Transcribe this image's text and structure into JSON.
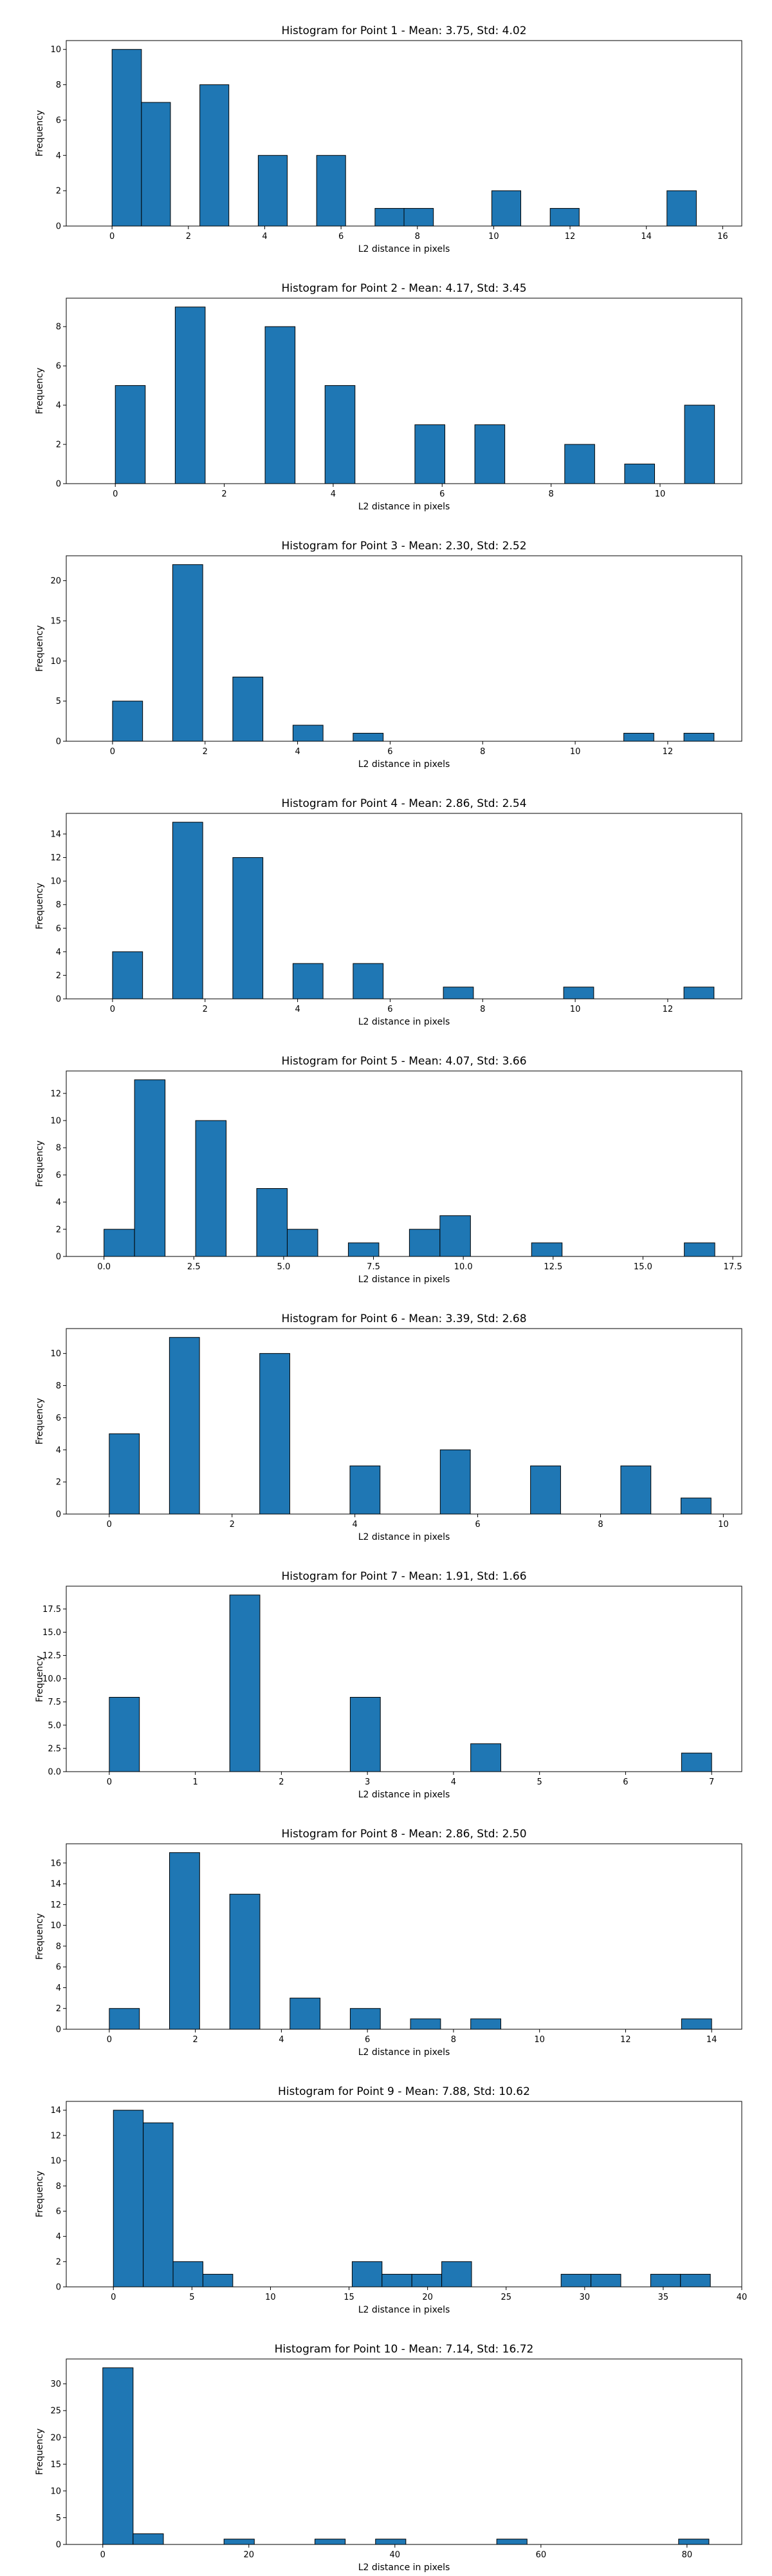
{
  "bar_color": "#1f77b4",
  "chart_data": [
    {
      "type": "bar",
      "title": "Histogram for Point 1 - Mean: 3.75, Std: 4.02",
      "xlabel": "L2 distance in pixels",
      "ylabel": "Frequency",
      "xlim": [
        -1.2,
        16.5
      ],
      "ylim": [
        0,
        10.5
      ],
      "xticks": [
        0,
        2,
        4,
        6,
        8,
        10,
        12,
        14,
        16
      ],
      "xtick_labels": [
        "0",
        "2",
        "4",
        "6",
        "8",
        "10",
        "12",
        "14",
        "16"
      ],
      "yticks": [
        0,
        2,
        4,
        6,
        8,
        10
      ],
      "ytick_labels": [
        "0",
        "2",
        "4",
        "6",
        "8",
        "10"
      ],
      "bins": [
        {
          "x0": 0.0,
          "x1": 0.77,
          "count": 10
        },
        {
          "x0": 0.77,
          "x1": 1.53,
          "count": 7
        },
        {
          "x0": 2.3,
          "x1": 3.06,
          "count": 8
        },
        {
          "x0": 3.83,
          "x1": 4.59,
          "count": 4
        },
        {
          "x0": 5.36,
          "x1": 6.12,
          "count": 4
        },
        {
          "x0": 6.89,
          "x1": 7.65,
          "count": 1
        },
        {
          "x0": 7.65,
          "x1": 8.42,
          "count": 1
        },
        {
          "x0": 9.95,
          "x1": 10.71,
          "count": 2
        },
        {
          "x0": 11.48,
          "x1": 12.24,
          "count": 1
        },
        {
          "x0": 14.54,
          "x1": 15.31,
          "count": 2
        }
      ]
    },
    {
      "type": "bar",
      "title": "Histogram for Point 2 - Mean: 4.17, Std: 3.45",
      "xlabel": "L2 distance in pixels",
      "ylabel": "Frequency",
      "xlim": [
        -0.9,
        11.5
      ],
      "ylim": [
        0,
        9.45
      ],
      "xticks": [
        0,
        2,
        4,
        6,
        8,
        10
      ],
      "xtick_labels": [
        "0",
        "2",
        "4",
        "6",
        "8",
        "10"
      ],
      "yticks": [
        0,
        2,
        4,
        6,
        8
      ],
      "ytick_labels": [
        "0",
        "2",
        "4",
        "6",
        "8"
      ],
      "bins": [
        {
          "x0": 0.0,
          "x1": 0.55,
          "count": 5
        },
        {
          "x0": 1.1,
          "x1": 1.65,
          "count": 9
        },
        {
          "x0": 2.75,
          "x1": 3.3,
          "count": 8
        },
        {
          "x0": 3.85,
          "x1": 4.4,
          "count": 5
        },
        {
          "x0": 5.5,
          "x1": 6.05,
          "count": 3
        },
        {
          "x0": 6.6,
          "x1": 7.15,
          "count": 3
        },
        {
          "x0": 8.25,
          "x1": 8.8,
          "count": 2
        },
        {
          "x0": 9.35,
          "x1": 9.9,
          "count": 1
        },
        {
          "x0": 10.45,
          "x1": 11.0,
          "count": 4
        }
      ]
    },
    {
      "type": "bar",
      "title": "Histogram for Point 3 - Mean: 2.30, Std: 2.52",
      "xlabel": "L2 distance in pixels",
      "ylabel": "Frequency",
      "xlim": [
        -1.0,
        13.6
      ],
      "ylim": [
        0,
        23.1
      ],
      "xticks": [
        0,
        2,
        4,
        6,
        8,
        10,
        12
      ],
      "xtick_labels": [
        "0",
        "2",
        "4",
        "6",
        "8",
        "10",
        "12"
      ],
      "yticks": [
        0,
        5,
        10,
        15,
        20
      ],
      "ytick_labels": [
        "0",
        "5",
        "10",
        "15",
        "20"
      ],
      "bins": [
        {
          "x0": 0.0,
          "x1": 0.65,
          "count": 5
        },
        {
          "x0": 1.3,
          "x1": 1.95,
          "count": 22
        },
        {
          "x0": 2.6,
          "x1": 3.25,
          "count": 8
        },
        {
          "x0": 3.9,
          "x1": 4.55,
          "count": 2
        },
        {
          "x0": 5.2,
          "x1": 5.85,
          "count": 1
        },
        {
          "x0": 11.05,
          "x1": 11.7,
          "count": 1
        },
        {
          "x0": 12.35,
          "x1": 13.0,
          "count": 1
        }
      ]
    },
    {
      "type": "bar",
      "title": "Histogram for Point 4 - Mean: 2.86, Std: 2.54",
      "xlabel": "L2 distance in pixels",
      "ylabel": "Frequency",
      "xlim": [
        -1.0,
        13.6
      ],
      "ylim": [
        0,
        15.75
      ],
      "xticks": [
        0,
        2,
        4,
        6,
        8,
        10,
        12
      ],
      "xtick_labels": [
        "0",
        "2",
        "4",
        "6",
        "8",
        "10",
        "12"
      ],
      "yticks": [
        0,
        2,
        4,
        6,
        8,
        10,
        12,
        14
      ],
      "ytick_labels": [
        "0",
        "2",
        "4",
        "6",
        "8",
        "10",
        "12",
        "14"
      ],
      "bins": [
        {
          "x0": 0.0,
          "x1": 0.65,
          "count": 4
        },
        {
          "x0": 1.3,
          "x1": 1.95,
          "count": 15
        },
        {
          "x0": 2.6,
          "x1": 3.25,
          "count": 12
        },
        {
          "x0": 3.9,
          "x1": 4.55,
          "count": 3
        },
        {
          "x0": 5.2,
          "x1": 5.85,
          "count": 3
        },
        {
          "x0": 7.15,
          "x1": 7.8,
          "count": 1
        },
        {
          "x0": 9.75,
          "x1": 10.4,
          "count": 1
        },
        {
          "x0": 12.35,
          "x1": 13.0,
          "count": 1
        }
      ]
    },
    {
      "type": "bar",
      "title": "Histogram for Point 5 - Mean: 4.07, Std: 3.66",
      "xlabel": "L2 distance in pixels",
      "ylabel": "Frequency",
      "xlim": [
        -1.05,
        17.75
      ],
      "ylim": [
        0,
        13.65
      ],
      "xticks": [
        0,
        2.5,
        5,
        7.5,
        10,
        12.5,
        15,
        17.5
      ],
      "xtick_labels": [
        "0.0",
        "2.5",
        "5.0",
        "7.5",
        "10.0",
        "12.5",
        "15.0",
        "17.5"
      ],
      "yticks": [
        0,
        2,
        4,
        6,
        8,
        10,
        12
      ],
      "ytick_labels": [
        "0",
        "2",
        "4",
        "6",
        "8",
        "10",
        "12"
      ],
      "bins": [
        {
          "x0": 0.0,
          "x1": 0.85,
          "count": 2
        },
        {
          "x0": 0.85,
          "x1": 1.7,
          "count": 13
        },
        {
          "x0": 2.55,
          "x1": 3.4,
          "count": 10
        },
        {
          "x0": 4.25,
          "x1": 5.1,
          "count": 5
        },
        {
          "x0": 5.1,
          "x1": 5.95,
          "count": 2
        },
        {
          "x0": 6.8,
          "x1": 7.65,
          "count": 1
        },
        {
          "x0": 8.5,
          "x1": 9.35,
          "count": 2
        },
        {
          "x0": 9.35,
          "x1": 10.2,
          "count": 3
        },
        {
          "x0": 11.9,
          "x1": 12.75,
          "count": 1
        },
        {
          "x0": 16.15,
          "x1": 17.0,
          "count": 1
        }
      ]
    },
    {
      "type": "bar",
      "title": "Histogram for Point 6 - Mean: 3.39, Std: 2.68",
      "xlabel": "L2 distance in pixels",
      "ylabel": "Frequency",
      "xlim": [
        -0.7,
        10.3
      ],
      "ylim": [
        0,
        11.55
      ],
      "xticks": [
        0,
        2,
        4,
        6,
        8,
        10
      ],
      "xtick_labels": [
        "0",
        "2",
        "4",
        "6",
        "8",
        "10"
      ],
      "yticks": [
        0,
        2,
        4,
        6,
        8,
        10
      ],
      "ytick_labels": [
        "0",
        "2",
        "4",
        "6",
        "8",
        "10"
      ],
      "bins": [
        {
          "x0": 0.0,
          "x1": 0.49,
          "count": 5
        },
        {
          "x0": 0.98,
          "x1": 1.47,
          "count": 11
        },
        {
          "x0": 2.45,
          "x1": 2.94,
          "count": 10
        },
        {
          "x0": 3.92,
          "x1": 4.41,
          "count": 3
        },
        {
          "x0": 5.39,
          "x1": 5.88,
          "count": 4
        },
        {
          "x0": 6.86,
          "x1": 7.35,
          "count": 3
        },
        {
          "x0": 8.33,
          "x1": 8.82,
          "count": 3
        },
        {
          "x0": 9.31,
          "x1": 9.8,
          "count": 1
        }
      ]
    },
    {
      "type": "bar",
      "title": "Histogram for Point 7 - Mean: 1.91, Std: 1.66",
      "xlabel": "L2 distance in pixels",
      "ylabel": "Frequency",
      "xlim": [
        -0.5,
        7.35
      ],
      "ylim": [
        0,
        19.95
      ],
      "xticks": [
        0,
        1,
        2,
        3,
        4,
        5,
        6,
        7
      ],
      "xtick_labels": [
        "0",
        "1",
        "2",
        "3",
        "4",
        "5",
        "6",
        "7"
      ],
      "yticks": [
        0,
        2.5,
        5,
        7.5,
        10,
        12.5,
        15,
        17.5
      ],
      "ytick_labels": [
        "0.0",
        "2.5",
        "5.0",
        "7.5",
        "10.0",
        "12.5",
        "15.0",
        "17.5"
      ],
      "bins": [
        {
          "x0": 0.0,
          "x1": 0.35,
          "count": 8
        },
        {
          "x0": 1.4,
          "x1": 1.75,
          "count": 19
        },
        {
          "x0": 2.8,
          "x1": 3.15,
          "count": 8
        },
        {
          "x0": 4.2,
          "x1": 4.55,
          "count": 3
        },
        {
          "x0": 6.65,
          "x1": 7.0,
          "count": 2
        }
      ]
    },
    {
      "type": "bar",
      "title": "Histogram for Point 8 - Mean: 2.86, Std: 2.50",
      "xlabel": "L2 distance in pixels",
      "ylabel": "Frequency",
      "xlim": [
        -1.0,
        14.7
      ],
      "ylim": [
        0,
        17.85
      ],
      "xticks": [
        0,
        2,
        4,
        6,
        8,
        10,
        12,
        14
      ],
      "xtick_labels": [
        "0",
        "2",
        "4",
        "6",
        "8",
        "10",
        "12",
        "14"
      ],
      "yticks": [
        0,
        2,
        4,
        6,
        8,
        10,
        12,
        14,
        16
      ],
      "ytick_labels": [
        "0",
        "2",
        "4",
        "6",
        "8",
        "10",
        "12",
        "14",
        "16"
      ],
      "bins": [
        {
          "x0": 0.0,
          "x1": 0.7,
          "count": 2
        },
        {
          "x0": 1.4,
          "x1": 2.1,
          "count": 17
        },
        {
          "x0": 2.8,
          "x1": 3.5,
          "count": 13
        },
        {
          "x0": 4.2,
          "x1": 4.9,
          "count": 3
        },
        {
          "x0": 5.6,
          "x1": 6.3,
          "count": 2
        },
        {
          "x0": 7.0,
          "x1": 7.7,
          "count": 1
        },
        {
          "x0": 8.4,
          "x1": 9.1,
          "count": 1
        },
        {
          "x0": 13.3,
          "x1": 14.0,
          "count": 1
        }
      ]
    },
    {
      "type": "bar",
      "title": "Histogram for Point 9 - Mean: 7.88, Std: 10.62",
      "xlabel": "L2 distance in pixels",
      "ylabel": "Frequency",
      "xlim": [
        -3.0,
        40.0
      ],
      "ylim": [
        0,
        14.7
      ],
      "xticks": [
        0,
        5,
        10,
        15,
        20,
        25,
        30,
        35,
        40
      ],
      "xtick_labels": [
        "0",
        "5",
        "10",
        "15",
        "20",
        "25",
        "30",
        "35",
        "40"
      ],
      "yticks": [
        0,
        2,
        4,
        6,
        8,
        10,
        12,
        14
      ],
      "ytick_labels": [
        "0",
        "2",
        "4",
        "6",
        "8",
        "10",
        "12",
        "14"
      ],
      "bins": [
        {
          "x0": 0.0,
          "x1": 1.9,
          "count": 14
        },
        {
          "x0": 1.9,
          "x1": 3.8,
          "count": 13
        },
        {
          "x0": 3.8,
          "x1": 5.7,
          "count": 2
        },
        {
          "x0": 5.7,
          "x1": 7.6,
          "count": 1
        },
        {
          "x0": 15.2,
          "x1": 17.1,
          "count": 2
        },
        {
          "x0": 17.1,
          "x1": 19.0,
          "count": 1
        },
        {
          "x0": 19.0,
          "x1": 20.9,
          "count": 1
        },
        {
          "x0": 20.9,
          "x1": 22.8,
          "count": 2
        },
        {
          "x0": 28.5,
          "x1": 30.4,
          "count": 1
        },
        {
          "x0": 30.4,
          "x1": 32.3,
          "count": 1
        },
        {
          "x0": 34.2,
          "x1": 36.1,
          "count": 1
        },
        {
          "x0": 36.1,
          "x1": 38.0,
          "count": 1
        }
      ]
    },
    {
      "type": "bar",
      "title": "Histogram for Point 10 - Mean: 7.14, Std: 16.72",
      "xlabel": "L2 distance in pixels",
      "ylabel": "Frequency",
      "xlim": [
        -5.0,
        87.5
      ],
      "ylim": [
        0,
        34.65
      ],
      "xticks": [
        0,
        20,
        40,
        60,
        80
      ],
      "xtick_labels": [
        "0",
        "20",
        "40",
        "60",
        "80"
      ],
      "yticks": [
        0,
        5,
        10,
        15,
        20,
        25,
        30
      ],
      "ytick_labels": [
        "0",
        "5",
        "10",
        "15",
        "20",
        "25",
        "30"
      ],
      "bins": [
        {
          "x0": 0.0,
          "x1": 4.15,
          "count": 33
        },
        {
          "x0": 4.15,
          "x1": 8.3,
          "count": 2
        },
        {
          "x0": 16.6,
          "x1": 20.75,
          "count": 1
        },
        {
          "x0": 29.05,
          "x1": 33.2,
          "count": 1
        },
        {
          "x0": 37.35,
          "x1": 41.5,
          "count": 1
        },
        {
          "x0": 53.95,
          "x1": 58.1,
          "count": 1
        },
        {
          "x0": 78.85,
          "x1": 83.0,
          "count": 1
        }
      ]
    }
  ]
}
